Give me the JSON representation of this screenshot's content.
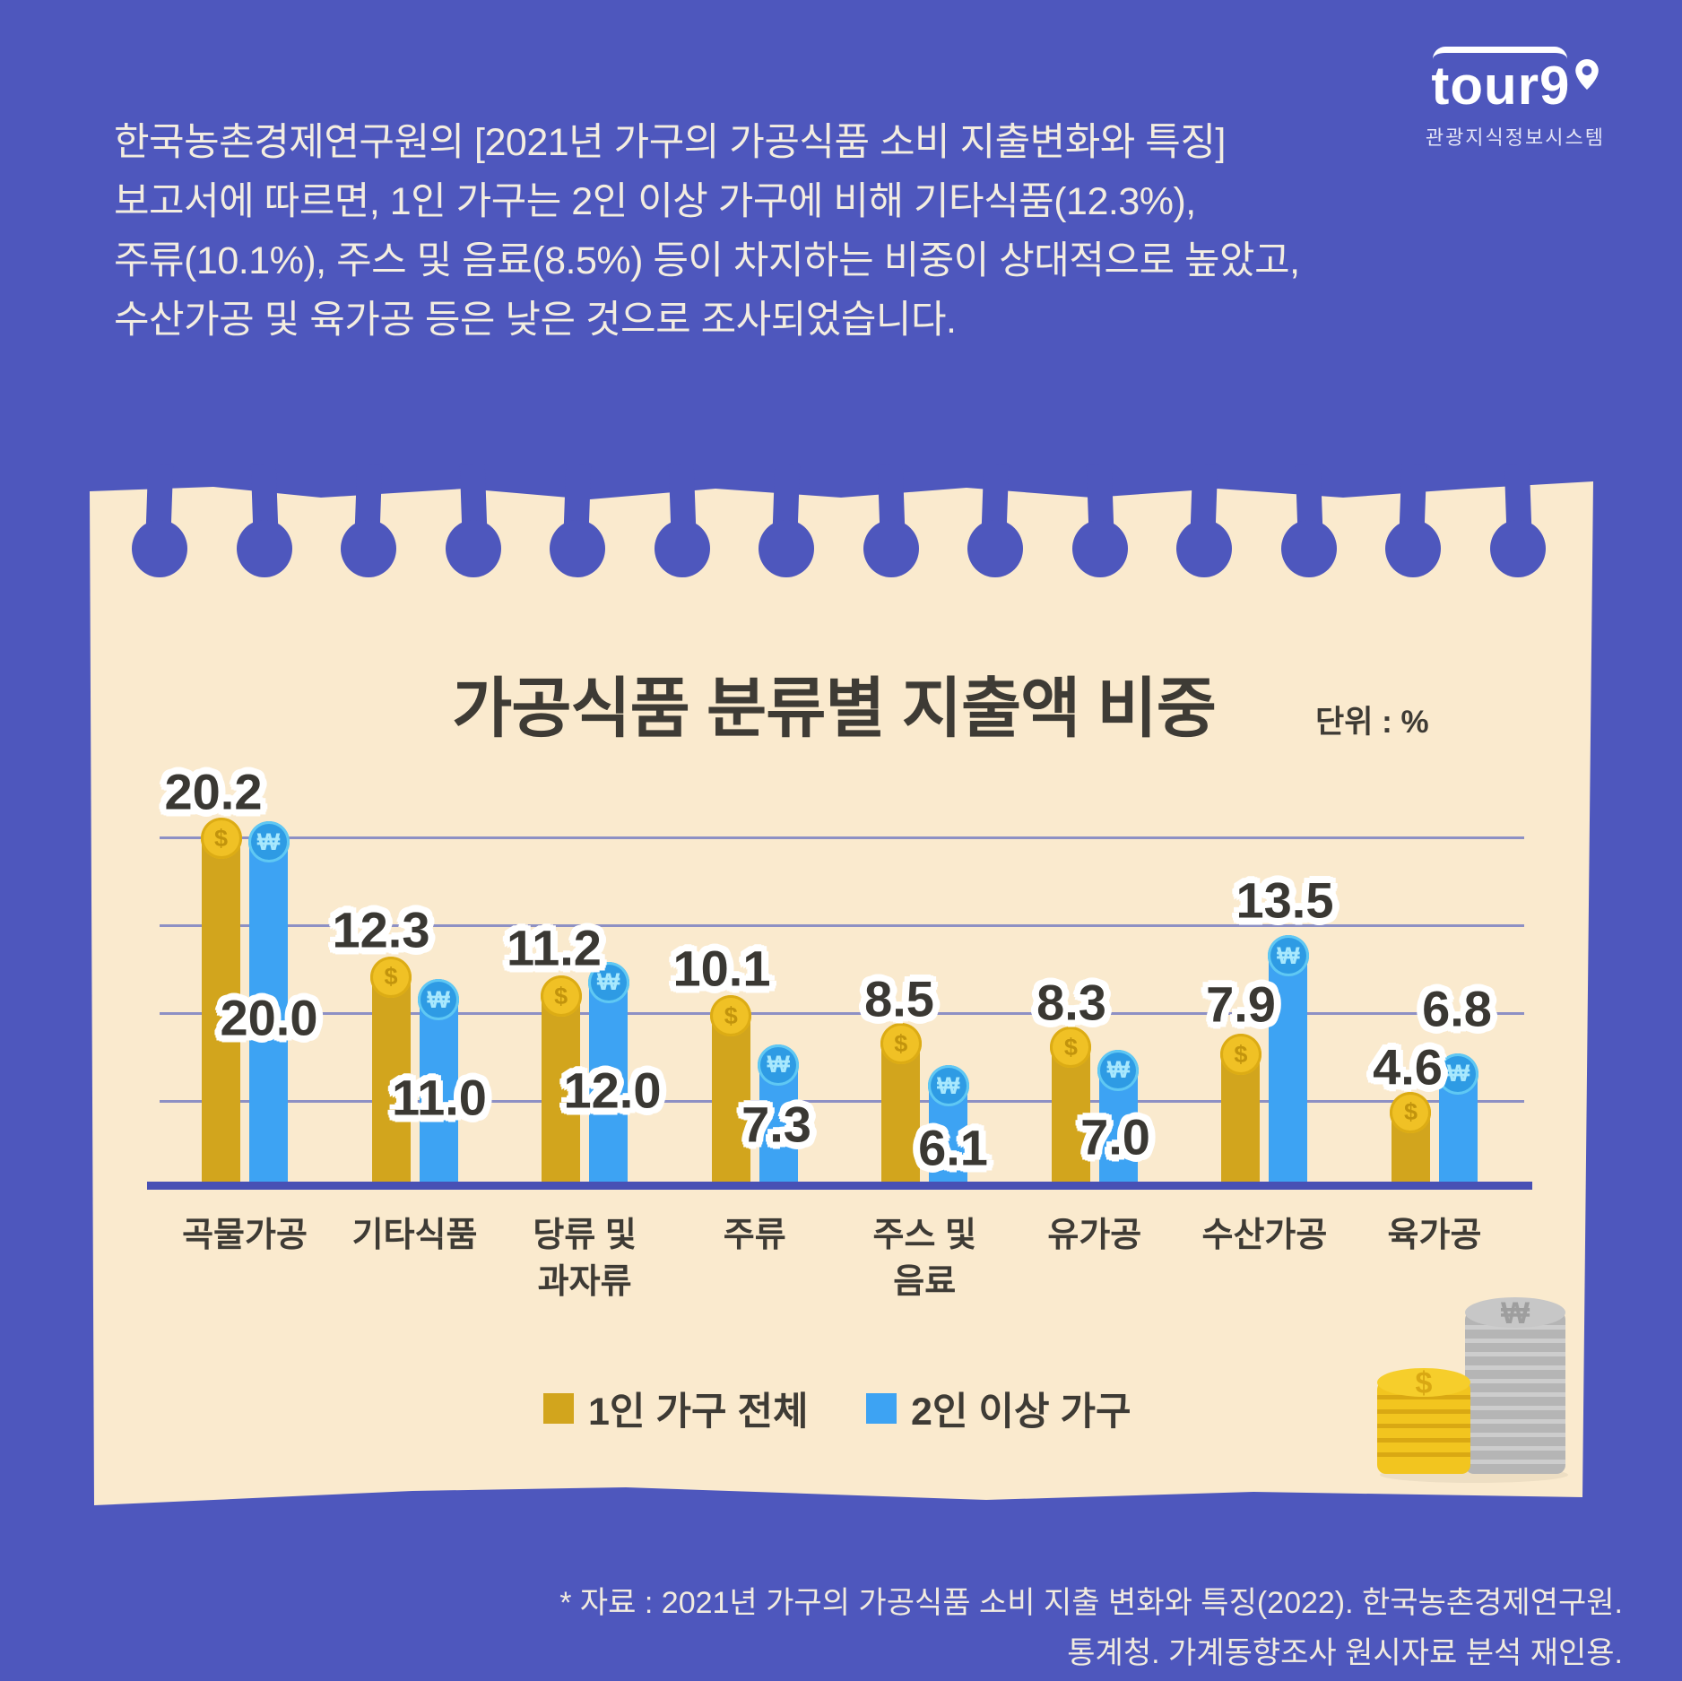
{
  "logo": {
    "brand": "tour9",
    "subtitle": "관광지식정보시스템"
  },
  "intro": {
    "lines": [
      "한국농촌경제연구원의 [2021년 가구의 가공식품 소비 지출변화와 특징]",
      "보고서에 따르면, 1인 가구는 2인 이상 가구에 비해 기타식품(12.3%),",
      "주류(10.1%), 주스 및 음료(8.5%) 등이 차지하는 비중이 상대적으로 높았고,",
      "수산가공 및 육가공 등은 낮은 것으로 조사되었습니다."
    ]
  },
  "chart": {
    "title": "가공식품 분류별 지출액 비중",
    "unit_label": "단위 : %"
  },
  "chart_data": {
    "type": "bar",
    "title": "가공식품 분류별 지출액 비중",
    "unit": "%",
    "categories": [
      "곡물가공",
      "기타식품",
      "당류 및 과자류",
      "주류",
      "주스 및 음료",
      "유가공",
      "수산가공",
      "육가공"
    ],
    "series": [
      {
        "name": "1인 가구 전체",
        "color": "#D2A51D",
        "coin_color": "#F0C125",
        "coin_symbol": "$",
        "values": [
          20.2,
          12.3,
          11.2,
          10.1,
          8.5,
          8.3,
          7.9,
          4.6
        ]
      },
      {
        "name": "2인 이상 가구",
        "color": "#3DA3F3",
        "coin_color": "#2E9BE4",
        "coin_symbol": "₩",
        "values": [
          20.0,
          11.0,
          12.0,
          7.3,
          6.1,
          7.0,
          13.5,
          6.8
        ]
      }
    ],
    "ylim": [
      0,
      22
    ],
    "gridlines": [
      5,
      10,
      15,
      20
    ],
    "grid_on": true,
    "legend_position": "bottom"
  },
  "footer": {
    "lines": [
      "* 자료 : 2021년 가구의 가공식품 소비 지출 변화와 특징(2022). 한국농촌경제연구원.",
      "통계청. 가계동향조사 원시자료 분석 재인용."
    ]
  }
}
